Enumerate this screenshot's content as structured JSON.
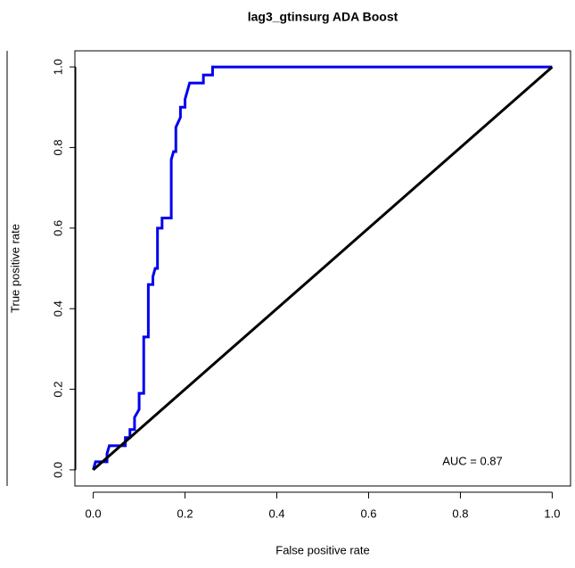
{
  "chart_data": {
    "type": "line",
    "title": "lag3_gtinsurg ADA Boost",
    "xlabel": "False positive rate",
    "ylabel": "True positive rate",
    "annotation": "AUC = 0.87",
    "xlim": [
      -0.04,
      1.04
    ],
    "ylim": [
      -0.04,
      1.04
    ],
    "xticks": [
      {
        "value": 0,
        "label": "0.0"
      },
      {
        "value": 0.2,
        "label": "0.2"
      },
      {
        "value": 0.4,
        "label": "0.4"
      },
      {
        "value": 0.6,
        "label": "0.6"
      },
      {
        "value": 0.8,
        "label": "0.8"
      },
      {
        "value": 1,
        "label": "1.0"
      }
    ],
    "yticks": [
      {
        "value": 0,
        "label": "0.0"
      },
      {
        "value": 0.2,
        "label": "0.2"
      },
      {
        "value": 0.4,
        "label": "0.4"
      },
      {
        "value": 0.6,
        "label": "0.6"
      },
      {
        "value": 0.8,
        "label": "0.8"
      },
      {
        "value": 1,
        "label": "1.0"
      }
    ],
    "series": [
      {
        "color": "#0000ee",
        "x": [
          0,
          0.005,
          0.03,
          0.03,
          0.035,
          0.07,
          0.07,
          0.08,
          0.08,
          0.09,
          0.09,
          0.1,
          0.1,
          0.11,
          0.11,
          0.12,
          0.12,
          0.13,
          0.13,
          0.135,
          0.14,
          0.14,
          0.15,
          0.15,
          0.17,
          0.17,
          0.175,
          0.18,
          0.18,
          0.19,
          0.19,
          0.2,
          0.2,
          0.205,
          0.21,
          0.24,
          0.24,
          0.26,
          0.26,
          1
        ],
        "values": [
          0,
          0.02,
          0.02,
          0.04,
          0.06,
          0.06,
          0.08,
          0.08,
          0.1,
          0.1,
          0.13,
          0.15,
          0.19,
          0.19,
          0.33,
          0.33,
          0.46,
          0.46,
          0.48,
          0.5,
          0.5,
          0.6,
          0.6,
          0.625,
          0.625,
          0.77,
          0.79,
          0.79,
          0.85,
          0.875,
          0.9,
          0.9,
          0.92,
          0.94,
          0.96,
          0.96,
          0.98,
          0.98,
          1,
          1
        ]
      },
      {
        "color": "#000000",
        "x": [
          0,
          1
        ],
        "values": [
          0,
          1
        ]
      }
    ]
  }
}
